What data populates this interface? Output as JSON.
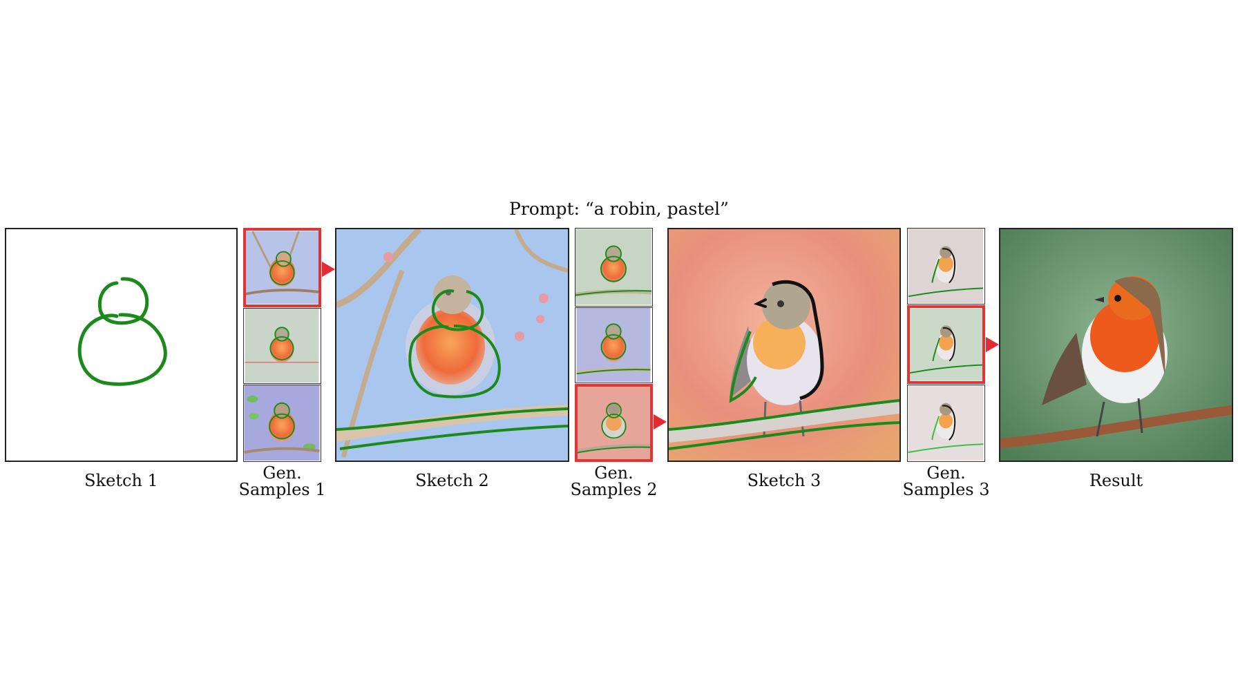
{
  "prompt": "Prompt: “a robin, pastel”",
  "captions": {
    "sketch1": "Sketch 1",
    "gen1_line1": "Gen.",
    "gen1_line2": "Samples 1",
    "sketch2": "Sketch 2",
    "gen2_line1": "Gen.",
    "gen2_line2": "Samples 2",
    "sketch3": "Sketch 3",
    "gen3_line1": "Gen.",
    "gen3_line2": "Samples 3",
    "result": "Result"
  },
  "colors": {
    "stroke_green": "#1a8a1a",
    "stroke_black": "#111111",
    "selection_red": "#e03535",
    "arrow_red": "#e32b36",
    "sky_blue": "#a9c6ef",
    "peach_bg": "#e9907d",
    "result_green": "#5d8a5e",
    "robin_orange": "#ee5a1c"
  },
  "selected_samples": {
    "gen1": 1,
    "gen2": 3,
    "gen3": 2
  }
}
